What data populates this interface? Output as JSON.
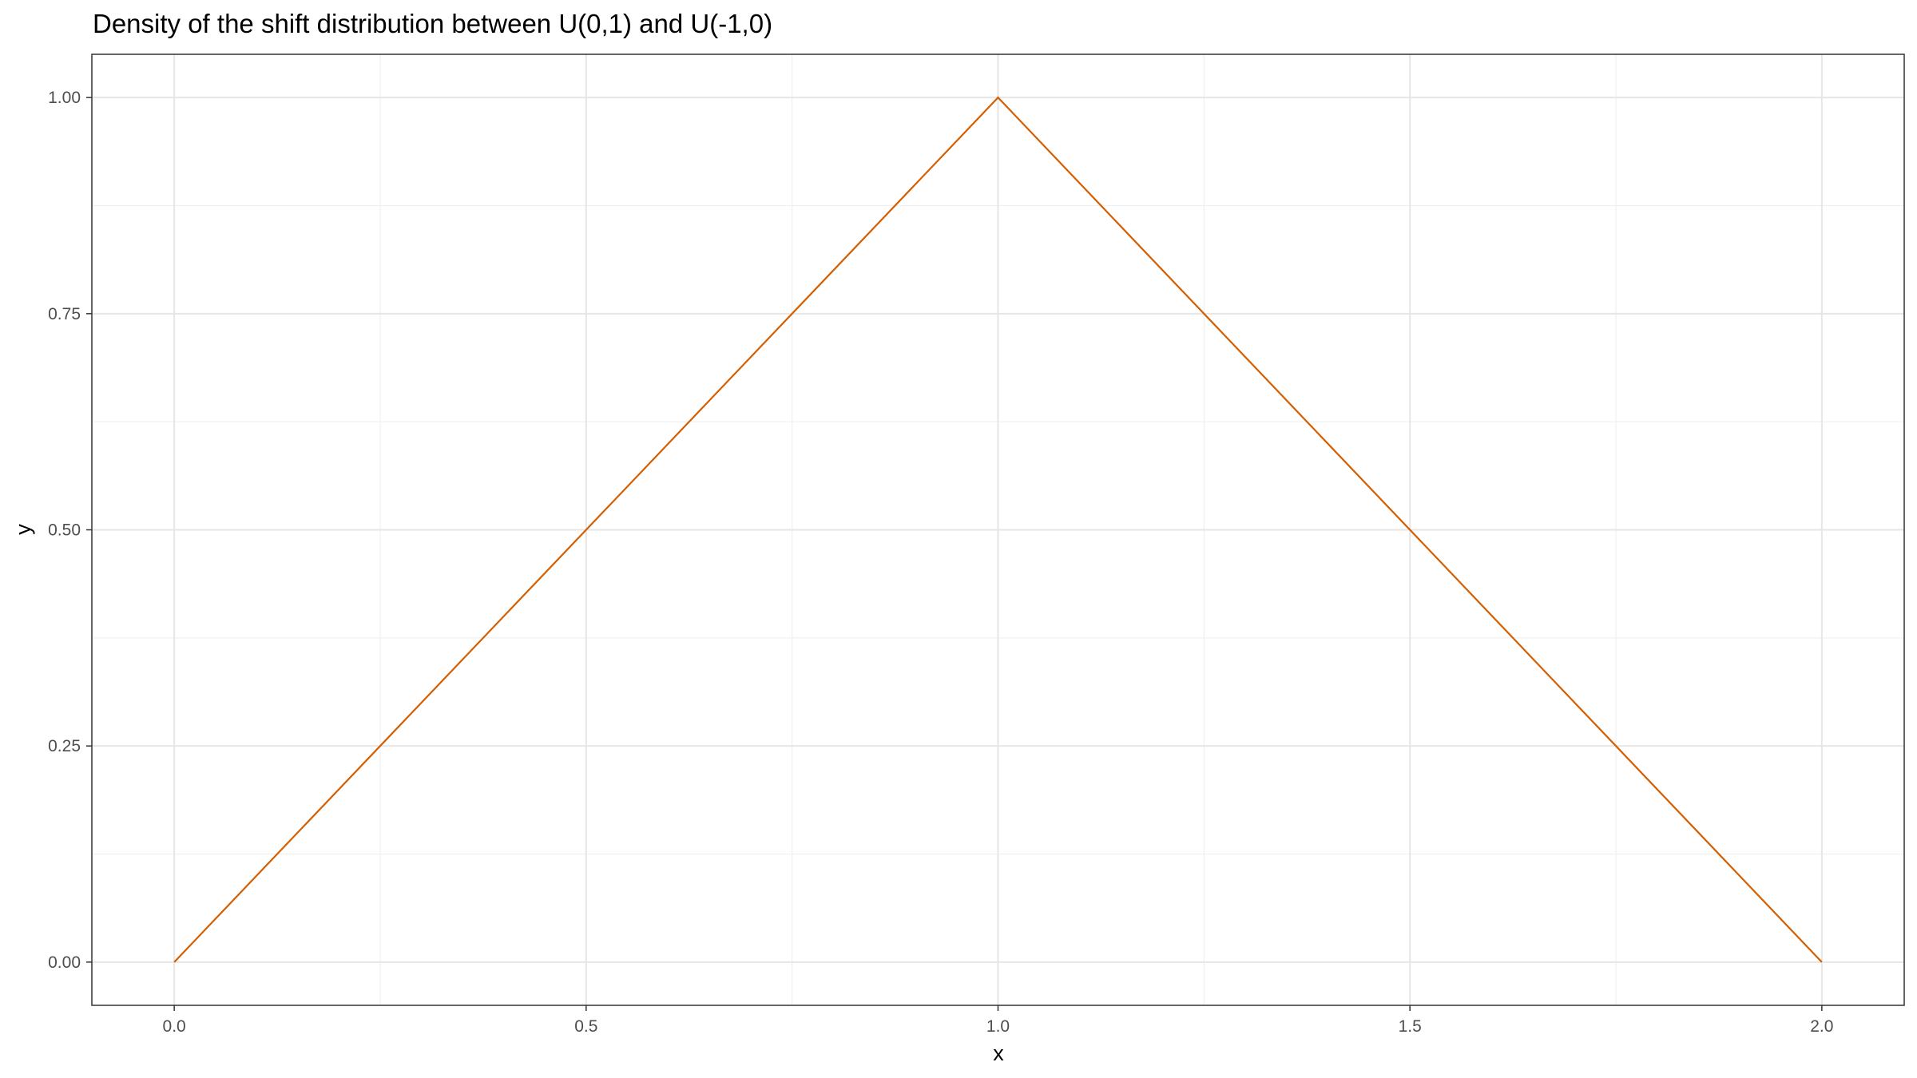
{
  "chart_data": {
    "type": "line",
    "title": "Density of the shift distribution between U(0,1) and U(-1,0)",
    "xlabel": "x",
    "ylabel": "y",
    "xlim": [
      -0.1,
      2.1
    ],
    "ylim": [
      -0.05,
      1.05
    ],
    "x_ticks": [
      0,
      0.5,
      1,
      1.5,
      2
    ],
    "x_tick_labels": [
      "0.0",
      "0.5",
      "1.0",
      "1.5",
      "2.0"
    ],
    "y_ticks": [
      0,
      0.25,
      0.5,
      0.75,
      1
    ],
    "y_tick_labels": [
      "0.00",
      "0.25",
      "0.50",
      "0.75",
      "1.00"
    ],
    "grid": true,
    "series": [
      {
        "x": [
          0,
          1,
          2
        ],
        "y": [
          0,
          1,
          0
        ],
        "color": "#d55e00"
      }
    ]
  }
}
